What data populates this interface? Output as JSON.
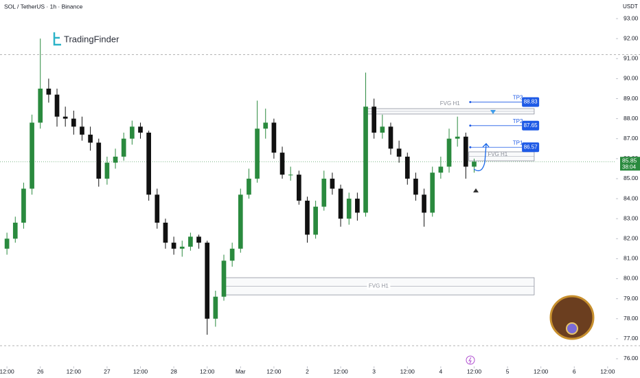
{
  "chart_data": {
    "type": "candlestick",
    "title": "SOL / TetherUS · 1h · Binance",
    "currency": "USDT",
    "brand": "TradingFinder",
    "countdown": "38:04",
    "up_color": "#2a8a3e",
    "down_color": "#111111",
    "x": [
      0,
      3,
      6,
      9,
      12,
      15,
      18,
      21,
      24,
      27,
      30,
      33,
      36,
      39,
      42,
      45,
      48,
      51,
      54,
      57,
      60,
      63,
      66,
      69,
      72,
      75,
      78,
      81,
      84,
      87,
      90,
      93,
      96,
      99,
      102,
      105,
      108,
      111,
      114,
      117,
      120,
      123,
      126,
      129,
      132,
      135,
      138,
      141,
      144,
      147,
      150,
      153,
      156,
      159,
      162,
      165,
      168
    ],
    "open": [
      81.5,
      82.0,
      82.8,
      84.5,
      87.8,
      89.5,
      89.2,
      88.1,
      88.0,
      87.6,
      87.2,
      86.8,
      85.0,
      85.8,
      86.1,
      87.0,
      87.6,
      87.3,
      84.2,
      82.8,
      81.8,
      81.5,
      81.6,
      82.1,
      81.8,
      78.0,
      79.1,
      80.9,
      81.5,
      84.2,
      85.0,
      87.5,
      87.8,
      86.3,
      85.2,
      85.2,
      83.9,
      82.2,
      83.6,
      85.0,
      84.5,
      83.0,
      84.0,
      83.3,
      88.6,
      87.3,
      87.6,
      86.5,
      86.1,
      85.0,
      84.2,
      83.3,
      85.3,
      85.6,
      87.0,
      87.1,
      85.6
    ],
    "high": [
      82.3,
      83.1,
      84.8,
      88.2,
      92.0,
      90.0,
      89.5,
      88.6,
      88.4,
      88.1,
      87.6,
      87.0,
      86.1,
      86.5,
      87.3,
      87.9,
      87.8,
      87.4,
      84.5,
      83.0,
      82.1,
      81.9,
      82.3,
      82.2,
      81.9,
      79.4,
      81.2,
      81.8,
      84.5,
      85.5,
      88.9,
      88.5,
      88.0,
      86.6,
      85.6,
      85.4,
      84.1,
      83.9,
      85.4,
      85.3,
      84.7,
      84.3,
      84.3,
      90.3,
      89.0,
      88.2,
      87.8,
      86.9,
      86.3,
      85.3,
      84.5,
      85.6,
      86.1,
      87.5,
      88.1,
      87.3,
      86.0
    ],
    "low": [
      81.2,
      81.8,
      82.5,
      84.2,
      87.5,
      88.8,
      87.6,
      87.6,
      87.2,
      86.9,
      86.4,
      84.6,
      84.7,
      85.5,
      85.9,
      86.7,
      87.0,
      83.9,
      82.5,
      81.5,
      81.2,
      81.1,
      81.4,
      81.5,
      77.2,
      77.6,
      78.9,
      80.6,
      81.3,
      84.0,
      84.8,
      87.0,
      86.0,
      85.0,
      84.9,
      83.7,
      81.8,
      82.0,
      83.4,
      84.2,
      82.6,
      82.7,
      82.9,
      83.1,
      87.0,
      87.0,
      86.2,
      85.8,
      84.7,
      83.9,
      82.6,
      83.1,
      85.0,
      85.3,
      86.6,
      85.0,
      85.3
    ],
    "close": [
      82.0,
      82.8,
      84.5,
      87.8,
      89.5,
      89.2,
      88.1,
      88.0,
      87.6,
      87.2,
      86.8,
      85.0,
      85.8,
      86.1,
      87.0,
      87.6,
      87.3,
      84.2,
      82.8,
      81.8,
      81.5,
      81.6,
      82.1,
      81.8,
      78.0,
      79.1,
      80.9,
      81.5,
      84.2,
      85.0,
      87.5,
      87.8,
      86.3,
      85.2,
      85.2,
      83.9,
      82.2,
      83.6,
      85.0,
      84.5,
      83.0,
      84.0,
      83.3,
      88.6,
      87.3,
      87.6,
      86.5,
      86.1,
      85.0,
      84.2,
      83.3,
      85.3,
      85.6,
      87.0,
      87.1,
      85.6,
      85.85
    ],
    "xlim": [
      -2.5,
      219
    ],
    "ylim": [
      75.62,
      93.93
    ],
    "xticks": [
      {
        "value": 0,
        "label": "12:00"
      },
      {
        "value": 12,
        "label": "26"
      },
      {
        "value": 24,
        "label": "12:00"
      },
      {
        "value": 36,
        "label": "27"
      },
      {
        "value": 48,
        "label": "12:00"
      },
      {
        "value": 60,
        "label": "28"
      },
      {
        "value": 72,
        "label": "12:00"
      },
      {
        "value": 84,
        "label": "Mar"
      },
      {
        "value": 96,
        "label": "12:00"
      },
      {
        "value": 108,
        "label": "2"
      },
      {
        "value": 120,
        "label": "12:00"
      },
      {
        "value": 132,
        "label": "3"
      },
      {
        "value": 144,
        "label": "12:00"
      },
      {
        "value": 156,
        "label": "4"
      },
      {
        "value": 168,
        "label": "12:00"
      },
      {
        "value": 180,
        "label": "5"
      },
      {
        "value": 192,
        "label": "12:00"
      },
      {
        "value": 204,
        "label": "6"
      },
      {
        "value": 216,
        "label": "12:00"
      }
    ],
    "yticks": [
      {
        "value": 76,
        "label": "76.00"
      },
      {
        "value": 77,
        "label": "77.00"
      },
      {
        "value": 78,
        "label": "78.00"
      },
      {
        "value": 79,
        "label": "79.00"
      },
      {
        "value": 80,
        "label": "80.00"
      },
      {
        "value": 81,
        "label": "81.00"
      },
      {
        "value": 82,
        "label": "82.00"
      },
      {
        "value": 83,
        "label": "83.00"
      },
      {
        "value": 84,
        "label": "84.00"
      },
      {
        "value": 85,
        "label": "85.00"
      },
      {
        "value": 86,
        "label": "86.00"
      },
      {
        "value": 87,
        "label": "87.00"
      },
      {
        "value": 88,
        "label": "88.00"
      },
      {
        "value": 89,
        "label": "89.00"
      },
      {
        "value": 90,
        "label": "90.00"
      },
      {
        "value": 91,
        "label": "91.00"
      },
      {
        "value": 92,
        "label": "92.00"
      },
      {
        "value": 93,
        "label": "93.00"
      }
    ],
    "reference_lines": [
      91.2,
      76.65
    ],
    "zones": [
      {
        "label": "FVG H1",
        "low": 88.23,
        "high": 88.5,
        "start": 129,
        "end": 189.6
      },
      {
        "label": "FVG H1",
        "low": 85.89,
        "high": 86.34,
        "start": 166.1,
        "end": 189.6
      },
      {
        "label": "FVG H1",
        "low": 79.19,
        "high": 80.05,
        "start": 77.7,
        "end": 189.6
      }
    ],
    "levels": [
      {
        "name": "TP3",
        "value": 88.83,
        "start": 166.6,
        "end": 185.2
      },
      {
        "name": "TP2",
        "value": 87.65,
        "start": 166.6,
        "end": 185.2
      },
      {
        "name": "TP1",
        "value": 86.57,
        "start": 166.6,
        "end": 185.2
      }
    ]
  }
}
